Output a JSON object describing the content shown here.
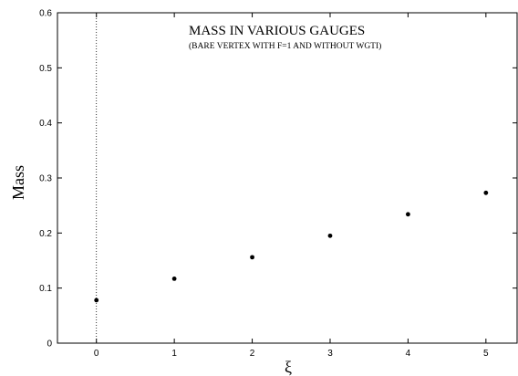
{
  "chart_data": {
    "type": "scatter",
    "title": "MASS IN VARIOUS GAUGES",
    "subtitle": "(BARE VERTEX WITH  F=1 AND WITHOUT WGTI)",
    "xlabel": "ξ",
    "ylabel": "Mass",
    "xlim": [
      -0.5,
      5.4
    ],
    "ylim": [
      0,
      0.6
    ],
    "x_ticks": [
      0,
      1,
      2,
      3,
      4,
      5
    ],
    "y_ticks": [
      0,
      0.1,
      0.2,
      0.3,
      0.4,
      0.5,
      0.6
    ],
    "y_tick_labels": [
      "0",
      "0.1",
      "0.2",
      "0.3",
      "0.4",
      "0.5",
      "0.6"
    ],
    "grid": false,
    "reference_line_x": 0,
    "series": [
      {
        "x": [
          0,
          1,
          2,
          3,
          4,
          5
        ],
        "y": [
          0.078,
          0.117,
          0.156,
          0.195,
          0.234,
          0.273
        ]
      }
    ]
  }
}
